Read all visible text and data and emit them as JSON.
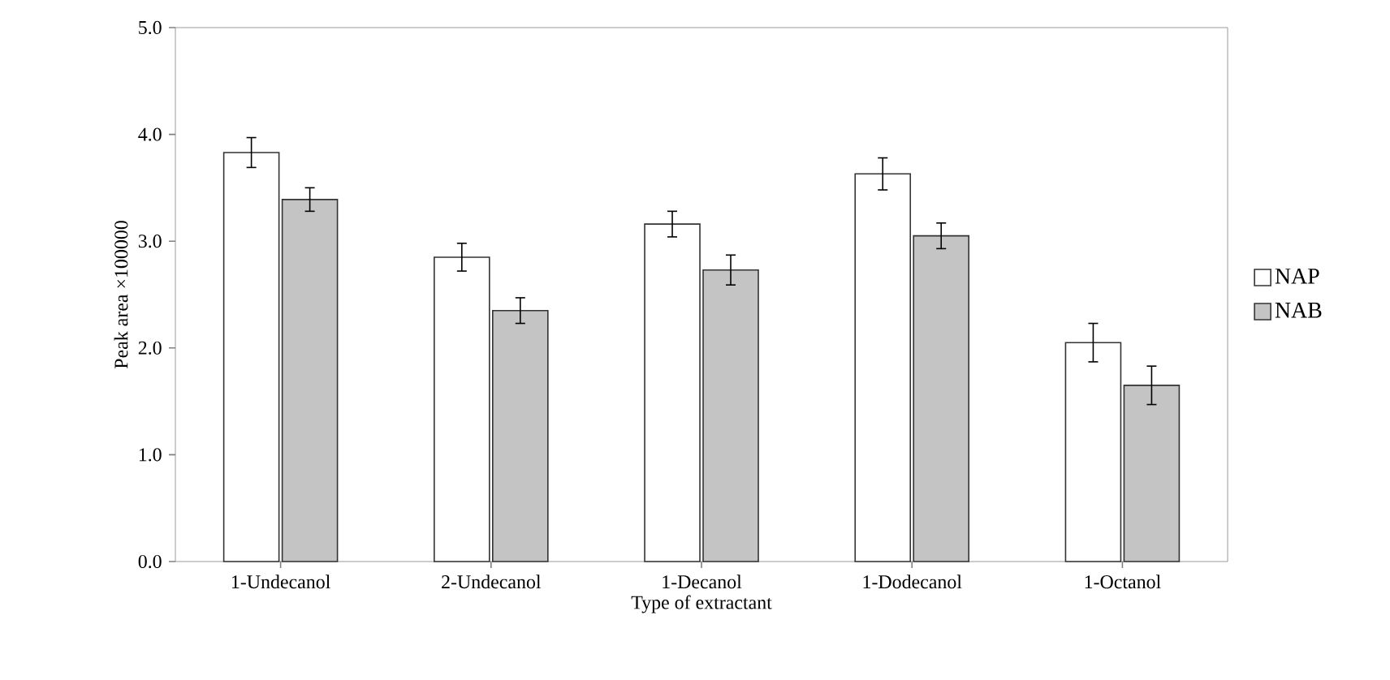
{
  "chart_data": {
    "type": "bar",
    "xlabel": "Type of extractant",
    "ylabel": "Peak area ×100000",
    "categories": [
      "1-Undecanol",
      "2-Undecanol",
      "1-Decanol",
      "1-Dodecanol",
      "1-Octanol"
    ],
    "series": [
      {
        "name": "NAP",
        "color": "#ffffff",
        "values": [
          3.83,
          2.85,
          3.16,
          3.63,
          2.05
        ],
        "errors": [
          0.14,
          0.13,
          0.12,
          0.15,
          0.18
        ]
      },
      {
        "name": "NAB",
        "color": "#c4c4c4",
        "values": [
          3.39,
          2.35,
          2.73,
          3.05,
          1.65
        ],
        "errors": [
          0.11,
          0.12,
          0.14,
          0.12,
          0.18
        ]
      }
    ],
    "ylim": [
      0,
      5
    ],
    "yticks": [
      {
        "value": 0,
        "label": "0.0"
      },
      {
        "value": 1,
        "label": "1.0"
      },
      {
        "value": 2,
        "label": "2.0"
      },
      {
        "value": 3,
        "label": "3.0"
      },
      {
        "value": 4,
        "label": "4.0"
      },
      {
        "value": 5,
        "label": "5.0"
      }
    ],
    "grid": false,
    "legend": "right"
  }
}
